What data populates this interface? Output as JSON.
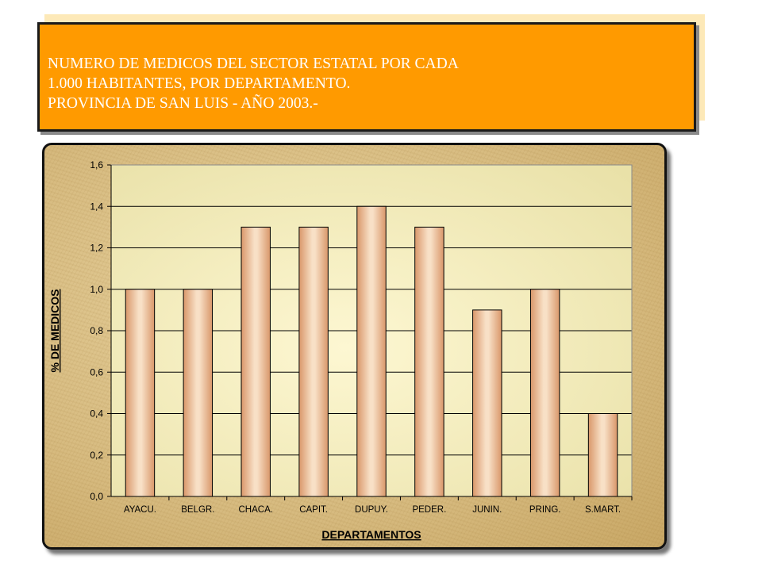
{
  "header": {
    "title_lines": [
      "NUMERO  DE  MEDICOS  DEL SECTOR  ESTATAL  POR  CADA",
      "1.000  HABITANTES, POR DEPARTAMENTO.",
      "PROVINCIA  DE  SAN  LUIS  -  AÑO  2003.-"
    ]
  },
  "chart_data": {
    "type": "bar",
    "categories": [
      "AYACU.",
      "BELGR.",
      "CHACA.",
      "CAPIT.",
      "DUPUY.",
      "PEDER.",
      "JUNIN.",
      "PRING.",
      "S.MART."
    ],
    "values": [
      1.0,
      1.0,
      1.3,
      1.3,
      1.4,
      1.3,
      0.9,
      1.0,
      0.4
    ],
    "xlabel": "DEPARTAMENTOS",
    "ylabel": "% DE MEDICOS",
    "ylim": [
      0,
      1.6
    ],
    "yticks": [
      "0,0",
      "0,2",
      "0,4",
      "0,6",
      "0,8",
      "1,0",
      "1,2",
      "1,4",
      "1,6"
    ],
    "grid": true,
    "colors": {
      "bar_edge": "#d99a6a",
      "bar_mid": "#f7dcc0",
      "plot_bg_center": "#fbf3c4",
      "plot_bg_edge": "#e6dea0",
      "title_bg": "#ff9a00"
    }
  }
}
